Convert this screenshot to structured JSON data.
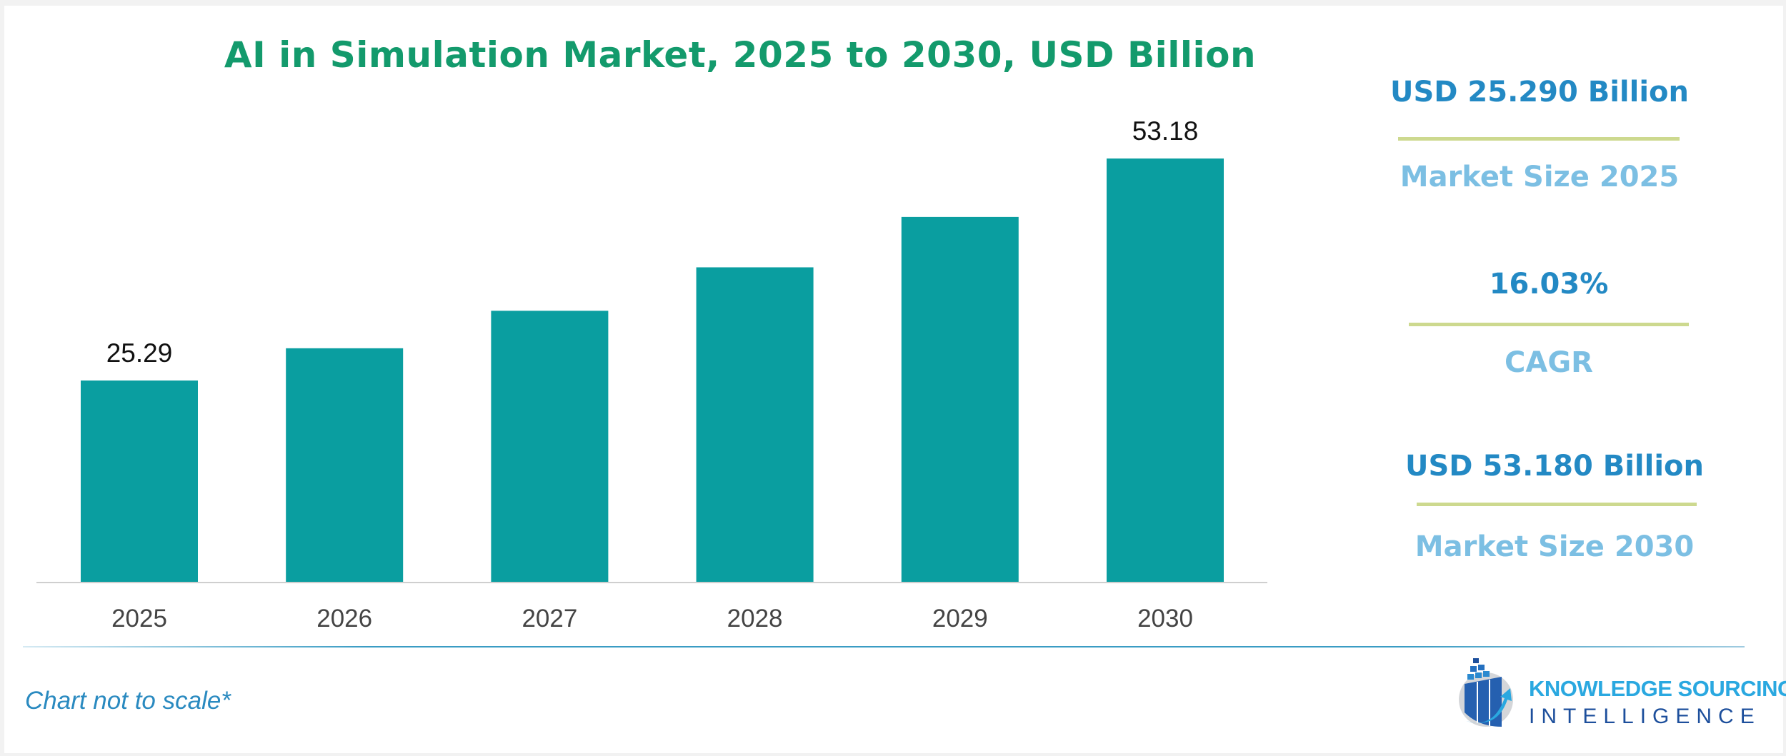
{
  "chart_data": {
    "type": "bar",
    "title": "AI in Simulation Market, 2025 to 2030, USD Billion",
    "categories": [
      "2025",
      "2026",
      "2027",
      "2028",
      "2029",
      "2030"
    ],
    "values": [
      25.29,
      29.34,
      34.05,
      39.51,
      45.84,
      53.18
    ],
    "data_labels": {
      "2025": "25.29",
      "2030": "53.18"
    },
    "xlabel": "",
    "ylabel": "",
    "ylim": [
      0,
      60
    ],
    "grid": false,
    "bar_color": "#0a9ea0",
    "note": "Chart not to scale*"
  },
  "stats": [
    {
      "value": "USD 25.290 Billion",
      "label": "Market Size 2025"
    },
    {
      "value": "16.03%",
      "label": "CAGR"
    },
    {
      "value": "USD 53.180 Billion",
      "label": "Market Size 2030"
    }
  ],
  "colors": {
    "title": "#139a6c",
    "stat_value": "#2389c4",
    "stat_label": "#7cbfe3",
    "rule": "#cdd98f"
  },
  "logo": {
    "line1": "KNOWLEDGE SOURCING",
    "line2": "INTELLIGENCE"
  }
}
